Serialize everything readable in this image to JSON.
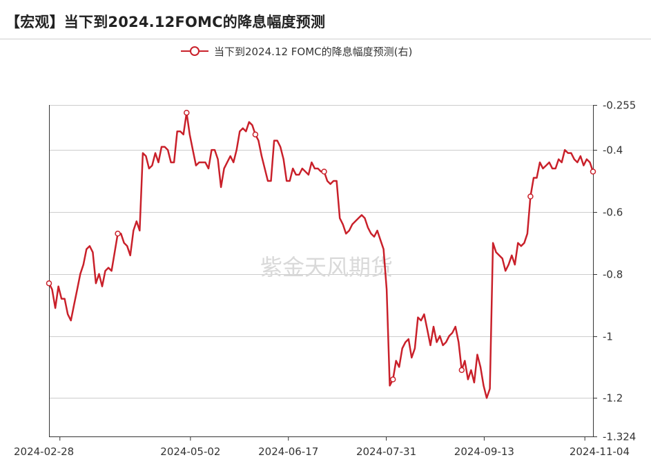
{
  "title": "【宏观】当下到2024.12FOMC的降息幅度预测",
  "legend_label": "当下到2024.12 FOMC的降息幅度预测(右)",
  "watermark": "紫金天风期货",
  "colors": {
    "line": "#c9202a",
    "grid": "#cccccc",
    "axis": "#333333"
  },
  "chart_data": {
    "type": "line",
    "title": "【宏观】当下到2024.12FOMC的降息幅度预测",
    "ylim": [
      -1.324,
      -0.255
    ],
    "y_axis_side": "right",
    "y_ticks": [
      -0.255,
      -0.4,
      -0.6,
      -0.8,
      -1,
      -1.2,
      -1.324
    ],
    "y_tick_labels": [
      "-0.255",
      "-0.4",
      "-0.6",
      "-0.8",
      "-1",
      "-1.2",
      "-1.324"
    ],
    "x_tick_labels": [
      "2024-02-28",
      "2024-05-02",
      "2024-06-17",
      "2024-07-31",
      "2024-09-13",
      "2024-11-04"
    ],
    "grid": true,
    "legend_position": "top-center",
    "series": [
      {
        "name": "当下到2024.12 FOMC的降息幅度预测(右)",
        "values": [
          -0.83,
          -0.85,
          -0.91,
          -0.84,
          -0.88,
          -0.88,
          -0.93,
          -0.95,
          -0.9,
          -0.85,
          -0.8,
          -0.77,
          -0.72,
          -0.71,
          -0.73,
          -0.83,
          -0.8,
          -0.84,
          -0.79,
          -0.78,
          -0.79,
          -0.73,
          -0.67,
          -0.67,
          -0.7,
          -0.71,
          -0.74,
          -0.66,
          -0.63,
          -0.66,
          -0.41,
          -0.42,
          -0.46,
          -0.45,
          -0.41,
          -0.44,
          -0.39,
          -0.39,
          -0.4,
          -0.44,
          -0.44,
          -0.34,
          -0.34,
          -0.35,
          -0.28,
          -0.35,
          -0.4,
          -0.45,
          -0.44,
          -0.44,
          -0.44,
          -0.46,
          -0.4,
          -0.4,
          -0.43,
          -0.52,
          -0.46,
          -0.44,
          -0.42,
          -0.44,
          -0.4,
          -0.34,
          -0.33,
          -0.34,
          -0.31,
          -0.32,
          -0.35,
          -0.37,
          -0.42,
          -0.46,
          -0.5,
          -0.5,
          -0.37,
          -0.37,
          -0.39,
          -0.43,
          -0.5,
          -0.5,
          -0.46,
          -0.48,
          -0.48,
          -0.46,
          -0.47,
          -0.48,
          -0.44,
          -0.46,
          -0.46,
          -0.47,
          -0.47,
          -0.5,
          -0.51,
          -0.5,
          -0.5,
          -0.62,
          -0.64,
          -0.67,
          -0.66,
          -0.64,
          -0.63,
          -0.62,
          -0.61,
          -0.62,
          -0.65,
          -0.67,
          -0.68,
          -0.66,
          -0.69,
          -0.72,
          -0.85,
          -1.16,
          -1.14,
          -1.08,
          -1.1,
          -1.04,
          -1.02,
          -1.01,
          -1.07,
          -1.04,
          -0.94,
          -0.95,
          -0.93,
          -0.98,
          -1.03,
          -0.97,
          -1.02,
          -1.0,
          -1.03,
          -1.02,
          -1.0,
          -0.99,
          -0.97,
          -1.02,
          -1.11,
          -1.08,
          -1.14,
          -1.11,
          -1.15,
          -1.06,
          -1.1,
          -1.16,
          -1.2,
          -1.17,
          -0.7,
          -0.73,
          -0.74,
          -0.75,
          -0.79,
          -0.77,
          -0.74,
          -0.77,
          -0.7,
          -0.71,
          -0.7,
          -0.67,
          -0.55,
          -0.49,
          -0.49,
          -0.44,
          -0.46,
          -0.45,
          -0.44,
          -0.46,
          -0.46,
          -0.43,
          -0.44,
          -0.4,
          -0.41,
          -0.41,
          -0.43,
          -0.44,
          -0.42,
          -0.45,
          -0.43,
          -0.44,
          -0.47
        ],
        "color": "#c9202a"
      }
    ]
  }
}
